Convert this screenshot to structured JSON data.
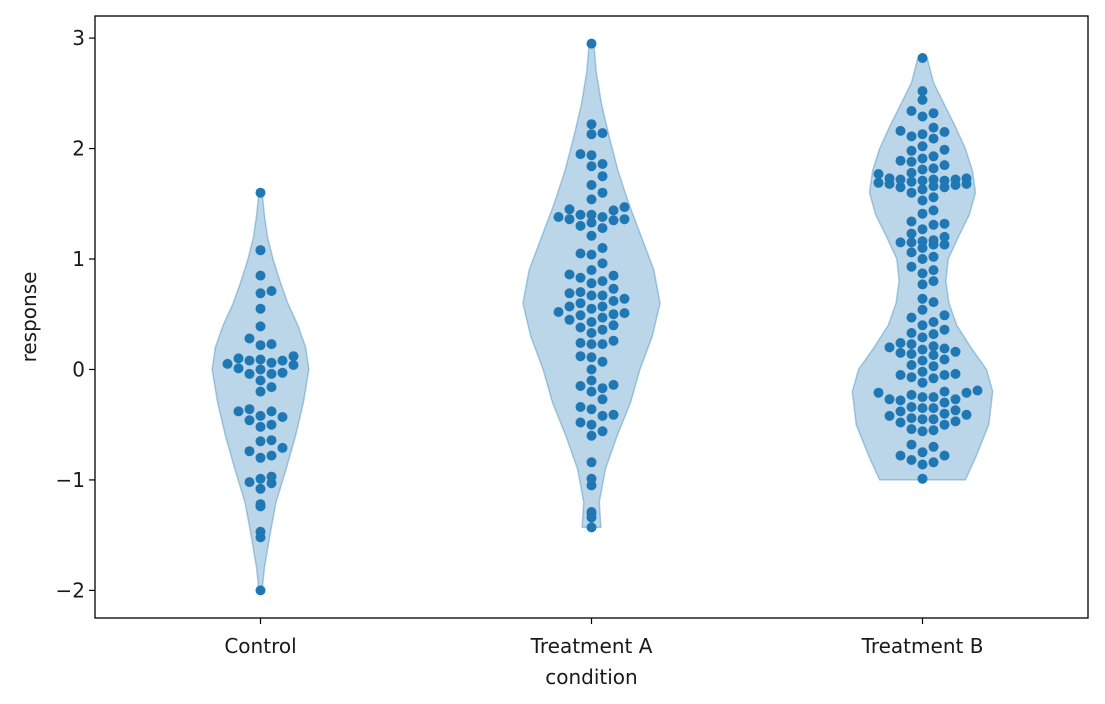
{
  "chart_data": {
    "type": "violin+swarm",
    "xlabel": "condition",
    "ylabel": "response",
    "ylim": [
      -2.25,
      3.2
    ],
    "yticks": [
      -2,
      -1,
      0,
      1,
      2,
      3
    ],
    "ytick_labels": [
      "−2",
      "−1",
      "0",
      "1",
      "2",
      "3"
    ],
    "categories": [
      "Control",
      "Treatment A",
      "Treatment B"
    ],
    "colors": {
      "violin_fill": "#1f77b4",
      "violin_opacity": 0.3,
      "point": "#1f77b4",
      "axis": "#000000"
    },
    "series": [
      {
        "category": "Control",
        "range": [
          -2.0,
          1.6
        ],
        "violin_density": [
          [
            -2.0,
            0.02
          ],
          [
            -1.8,
            0.05
          ],
          [
            -1.5,
            0.12
          ],
          [
            -1.2,
            0.2
          ],
          [
            -0.9,
            0.33
          ],
          [
            -0.6,
            0.45
          ],
          [
            -0.3,
            0.55
          ],
          [
            0.0,
            0.62
          ],
          [
            0.2,
            0.58
          ],
          [
            0.4,
            0.48
          ],
          [
            0.6,
            0.35
          ],
          [
            0.8,
            0.25
          ],
          [
            1.0,
            0.16
          ],
          [
            1.2,
            0.09
          ],
          [
            1.4,
            0.05
          ],
          [
            1.6,
            0.02
          ]
        ],
        "values": [
          -2.0,
          -1.52,
          -1.47,
          -1.24,
          -1.22,
          -1.08,
          -1.03,
          -1.02,
          -0.99,
          -0.97,
          -0.8,
          -0.78,
          -0.74,
          -0.71,
          -0.65,
          -0.64,
          -0.52,
          -0.5,
          -0.46,
          -0.43,
          -0.42,
          -0.38,
          -0.38,
          -0.36,
          -0.2,
          -0.16,
          -0.1,
          -0.04,
          -0.04,
          -0.03,
          0.0,
          0.01,
          0.04,
          0.05,
          0.06,
          0.08,
          0.08,
          0.09,
          0.1,
          0.12,
          0.22,
          0.23,
          0.28,
          0.39,
          0.55,
          0.69,
          0.71,
          0.85,
          1.08,
          1.08,
          1.6
        ]
      },
      {
        "category": "Treatment A",
        "range": [
          -1.43,
          2.95
        ],
        "violin_density": [
          [
            -1.43,
            0.12
          ],
          [
            -1.2,
            0.1
          ],
          [
            -0.9,
            0.18
          ],
          [
            -0.6,
            0.33
          ],
          [
            -0.3,
            0.5
          ],
          [
            0.0,
            0.62
          ],
          [
            0.3,
            0.78
          ],
          [
            0.6,
            0.88
          ],
          [
            0.9,
            0.8
          ],
          [
            1.2,
            0.64
          ],
          [
            1.5,
            0.48
          ],
          [
            1.8,
            0.34
          ],
          [
            2.1,
            0.23
          ],
          [
            2.4,
            0.13
          ],
          [
            2.7,
            0.06
          ],
          [
            2.95,
            0.03
          ]
        ],
        "values": [
          -1.43,
          -1.34,
          -1.3,
          -1.29,
          -1.05,
          -0.99,
          -0.84,
          -0.6,
          -0.56,
          -0.5,
          -0.48,
          -0.42,
          -0.41,
          -0.36,
          -0.34,
          -0.27,
          -0.2,
          -0.17,
          -0.15,
          -0.14,
          -0.1,
          0.0,
          0.07,
          0.11,
          0.12,
          0.23,
          0.23,
          0.24,
          0.26,
          0.33,
          0.36,
          0.38,
          0.4,
          0.43,
          0.45,
          0.47,
          0.49,
          0.5,
          0.51,
          0.52,
          0.55,
          0.57,
          0.57,
          0.6,
          0.62,
          0.64,
          0.67,
          0.67,
          0.69,
          0.7,
          0.73,
          0.78,
          0.8,
          0.83,
          0.85,
          0.86,
          0.9,
          0.96,
          1.04,
          1.05,
          1.1,
          1.21,
          1.28,
          1.3,
          1.33,
          1.35,
          1.36,
          1.36,
          1.38,
          1.38,
          1.4,
          1.4,
          1.44,
          1.45,
          1.47,
          1.54,
          1.6,
          1.67,
          1.75,
          1.84,
          1.86,
          1.94,
          1.95,
          2.13,
          2.14,
          2.22,
          2.95
        ]
      },
      {
        "category": "Treatment B",
        "range": [
          -1.0,
          2.82
        ],
        "violin_density": [
          [
            -1.0,
            0.55
          ],
          [
            -0.8,
            0.68
          ],
          [
            -0.5,
            0.85
          ],
          [
            -0.2,
            0.9
          ],
          [
            0.0,
            0.82
          ],
          [
            0.2,
            0.62
          ],
          [
            0.4,
            0.44
          ],
          [
            0.6,
            0.34
          ],
          [
            0.8,
            0.3
          ],
          [
            1.0,
            0.33
          ],
          [
            1.2,
            0.46
          ],
          [
            1.4,
            0.6
          ],
          [
            1.6,
            0.68
          ],
          [
            1.8,
            0.64
          ],
          [
            2.0,
            0.55
          ],
          [
            2.2,
            0.42
          ],
          [
            2.4,
            0.28
          ],
          [
            2.6,
            0.14
          ],
          [
            2.82,
            0.06
          ]
        ],
        "values": [
          -0.99,
          -0.86,
          -0.84,
          -0.82,
          -0.78,
          -0.78,
          -0.75,
          -0.7,
          -0.68,
          -0.56,
          -0.55,
          -0.54,
          -0.5,
          -0.48,
          -0.47,
          -0.45,
          -0.45,
          -0.44,
          -0.42,
          -0.41,
          -0.4,
          -0.38,
          -0.37,
          -0.35,
          -0.35,
          -0.34,
          -0.3,
          -0.28,
          -0.27,
          -0.27,
          -0.25,
          -0.25,
          -0.23,
          -0.21,
          -0.21,
          -0.2,
          -0.19,
          -0.12,
          -0.08,
          -0.07,
          -0.05,
          -0.05,
          -0.04,
          -0.02,
          0.03,
          0.04,
          0.08,
          0.09,
          0.13,
          0.14,
          0.15,
          0.16,
          0.18,
          0.19,
          0.2,
          0.21,
          0.23,
          0.24,
          0.29,
          0.32,
          0.33,
          0.36,
          0.4,
          0.43,
          0.47,
          0.49,
          0.54,
          0.61,
          0.64,
          0.77,
          0.8,
          0.87,
          0.9,
          0.93,
          1.0,
          1.02,
          1.06,
          1.1,
          1.13,
          1.13,
          1.15,
          1.15,
          1.16,
          1.17,
          1.2,
          1.23,
          1.27,
          1.31,
          1.32,
          1.34,
          1.41,
          1.44,
          1.53,
          1.56,
          1.6,
          1.63,
          1.65,
          1.65,
          1.66,
          1.67,
          1.68,
          1.68,
          1.69,
          1.7,
          1.71,
          1.71,
          1.72,
          1.72,
          1.72,
          1.73,
          1.73,
          1.77,
          1.78,
          1.81,
          1.82,
          1.85,
          1.88,
          1.89,
          1.91,
          1.93,
          1.98,
          1.99,
          2.02,
          2.09,
          2.11,
          2.13,
          2.15,
          2.16,
          2.19,
          2.29,
          2.32,
          2.34,
          2.44,
          2.52,
          2.82
        ]
      }
    ]
  }
}
